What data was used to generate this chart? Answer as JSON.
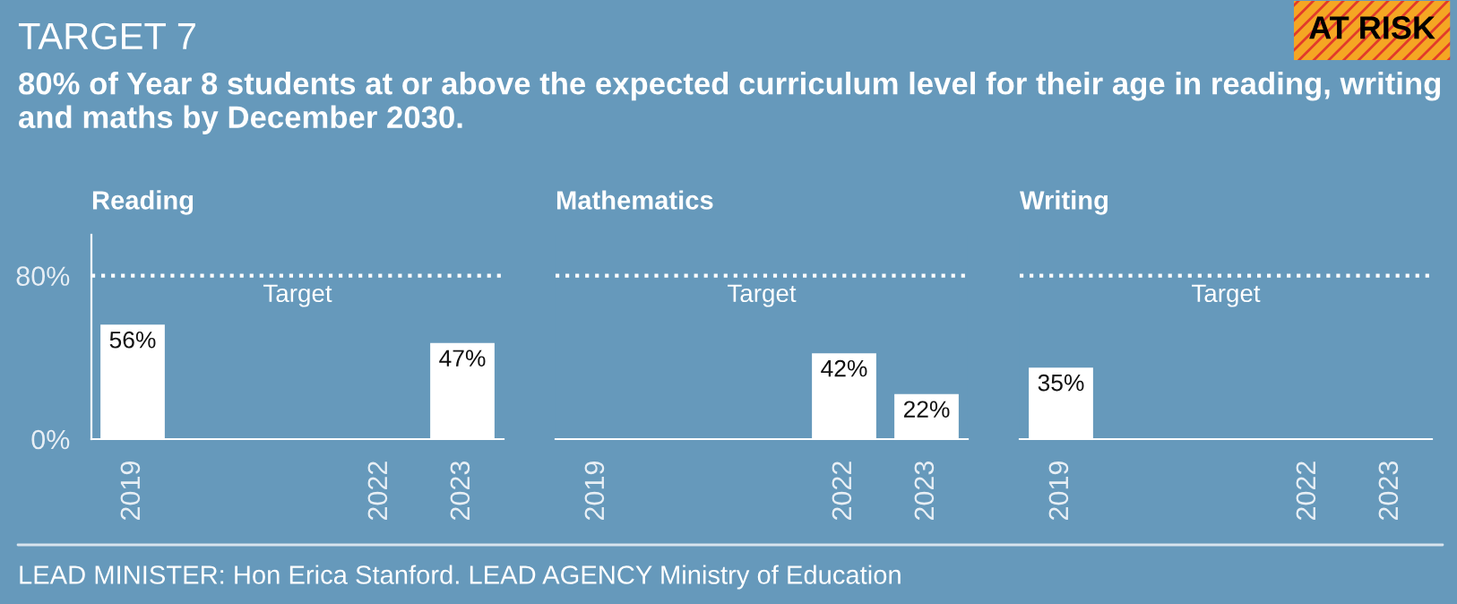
{
  "chart_data": [
    {
      "type": "other",
      "title": "TARGET 7",
      "subtitle": "80% of Year 8 students at or above the expected curriculum level for their age in reading, writing and maths by December 2030.",
      "annotations": [
        "AT RISK",
        "LEAD MINISTER: Hon Erica Stanford. LEAD AGENCY Ministry of Education"
      ]
    },
    {
      "type": "bar",
      "title": "Reading",
      "x": [
        2019,
        2023
      ],
      "values": [
        56,
        47
      ],
      "value_labels": [
        "56%",
        "47%"
      ],
      "color": "#ffffff",
      "xlim": [
        2018.5,
        2023.5
      ],
      "xticks": [
        2019,
        2022,
        2023
      ],
      "ylim": [
        0,
        100
      ],
      "yticks": [
        {
          "value": 0,
          "label": "0%"
        },
        {
          "value": 80,
          "label": "80%"
        }
      ],
      "ref_lines": [
        {
          "axis": "y",
          "value": 80,
          "label": "Target",
          "color": "#ffffff",
          "line_style": "dotted"
        }
      ],
      "grid": false,
      "legend": false
    },
    {
      "type": "bar",
      "title": "Mathematics",
      "x": [
        2022,
        2023
      ],
      "values": [
        42,
        22
      ],
      "value_labels": [
        "42%",
        "22%"
      ],
      "color": "#ffffff",
      "xlim": [
        2018.5,
        2023.5
      ],
      "xticks": [
        2019,
        2022,
        2023
      ],
      "tick_labels": "x",
      "ref_lines": [
        {
          "axis": "y",
          "value": 80,
          "label": "Target",
          "color": "#ffffff",
          "line_style": "dotted"
        }
      ],
      "grid": false,
      "legend": false
    },
    {
      "type": "bar",
      "title": "Writing",
      "x": [
        2019
      ],
      "values": [
        35
      ],
      "value_labels": [
        "35%"
      ],
      "color": "#ffffff",
      "xlim": [
        2018.5,
        2023.5
      ],
      "xticks": [
        2019,
        2022,
        2023
      ],
      "tick_labels": "x",
      "ref_lines": [
        {
          "axis": "y",
          "value": 80,
          "label": "Target",
          "color": "#ffffff",
          "line_style": "dotted"
        }
      ],
      "grid": false,
      "legend": false
    }
  ]
}
